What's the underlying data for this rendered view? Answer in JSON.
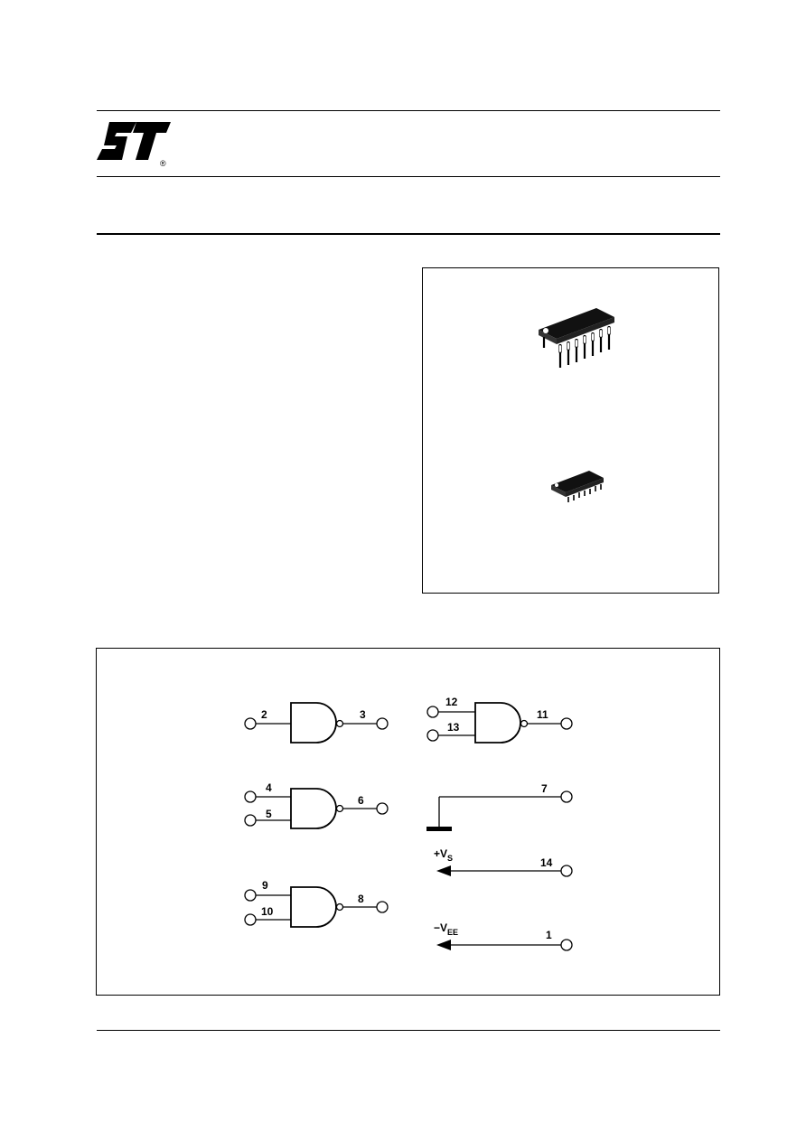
{
  "logo": {
    "icon": "st-logo",
    "registered_mark": "®"
  },
  "packages": [
    {
      "name": "dip-14-package",
      "icon": "dip-package-icon"
    },
    {
      "name": "so-14-package",
      "icon": "so-package-icon"
    }
  ],
  "diagram": {
    "gates": [
      {
        "inputs": [
          "2"
        ],
        "output": "3"
      },
      {
        "inputs": [
          "12",
          "13"
        ],
        "output": "11"
      },
      {
        "inputs": [
          "4",
          "5"
        ],
        "output": "6"
      },
      {
        "inputs": [
          "9",
          "10"
        ],
        "output": "8"
      }
    ],
    "ground_pin": "7",
    "supply_positive": {
      "label": "+V",
      "subscript": "S",
      "pin": "14"
    },
    "supply_negative": {
      "label": "−V",
      "subscript": "EE",
      "pin": "1"
    }
  }
}
